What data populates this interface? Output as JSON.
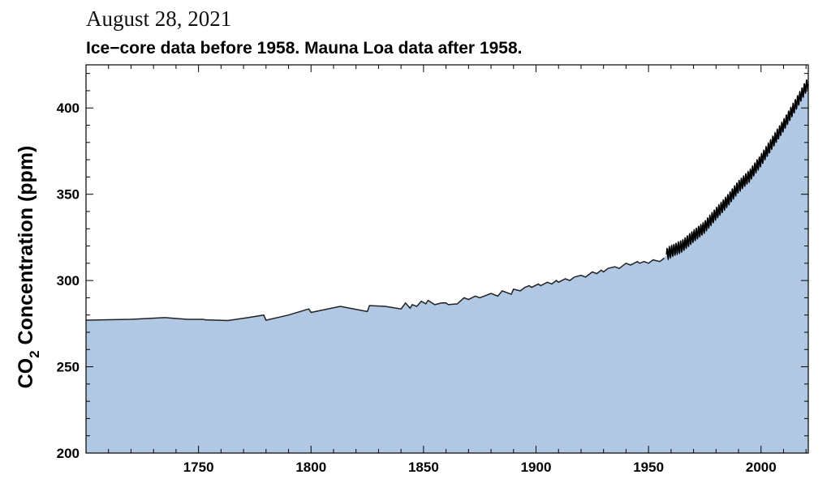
{
  "header": {
    "date": "August 28, 2021",
    "subtitle": "Ice−core data before 1958. Mauna Loa data after 1958."
  },
  "chart_data": {
    "type": "area",
    "ylabel_parts": [
      "CO",
      "2",
      " Concentration (ppm)"
    ],
    "xlim": [
      1700,
      2021
    ],
    "ylim": [
      200,
      425
    ],
    "x_ticks": [
      1750,
      1800,
      1850,
      1900,
      1950,
      2000
    ],
    "y_ticks": [
      200,
      250,
      300,
      350,
      400
    ],
    "grid": false,
    "colors": {
      "fill": "#b0c8e4",
      "line": "#222222",
      "axis": "#000000"
    },
    "series": [
      {
        "x": [
          1700,
          1720,
          1735,
          1745,
          1752,
          1753,
          1763,
          1772,
          1779,
          1780,
          1790,
          1799,
          1800,
          1813,
          1825,
          1826,
          1833,
          1840,
          1842,
          1844,
          1845,
          1847,
          1849,
          1851,
          1852,
          1855,
          1858,
          1860,
          1861,
          1865,
          1868,
          1870,
          1873,
          1875,
          1880,
          1883,
          1885,
          1889,
          1890,
          1893,
          1895,
          1897,
          1898,
          1901,
          1902,
          1905,
          1907,
          1909,
          1910,
          1913,
          1915,
          1917,
          1920,
          1922,
          1925,
          1927,
          1929,
          1930,
          1932,
          1935,
          1937,
          1940,
          1942,
          1945,
          1946,
          1948,
          1950,
          1952,
          1955,
          1957
        ],
        "y": [
          277,
          277.5,
          278.5,
          277.5,
          277.5,
          277.2,
          276.8,
          278.5,
          280,
          277,
          280,
          283.5,
          281.5,
          285,
          282,
          285.5,
          285,
          283.5,
          287,
          284,
          286,
          285,
          288,
          286.5,
          288.5,
          286,
          287,
          287,
          286,
          286.5,
          290,
          289,
          291,
          290,
          292.5,
          291,
          294,
          292,
          295,
          294,
          296,
          297,
          296,
          298,
          297,
          299,
          298,
          300,
          299,
          301,
          300,
          302,
          303,
          302,
          305,
          304,
          306,
          305,
          307,
          308,
          307,
          310,
          309,
          311,
          310,
          311,
          310,
          312,
          311,
          313
        ]
      },
      {
        "x": [
          1958,
          1960,
          1965,
          1970,
          1975,
          1980,
          1985,
          1990,
          1995,
          2000,
          2005,
          2010,
          2015,
          2021
        ],
        "y": [
          315,
          316.9,
          320,
          325.7,
          331,
          338.7,
          346,
          354.4,
          360.8,
          369.7,
          379.8,
          389.9,
          401,
          414.7
        ]
      }
    ]
  }
}
